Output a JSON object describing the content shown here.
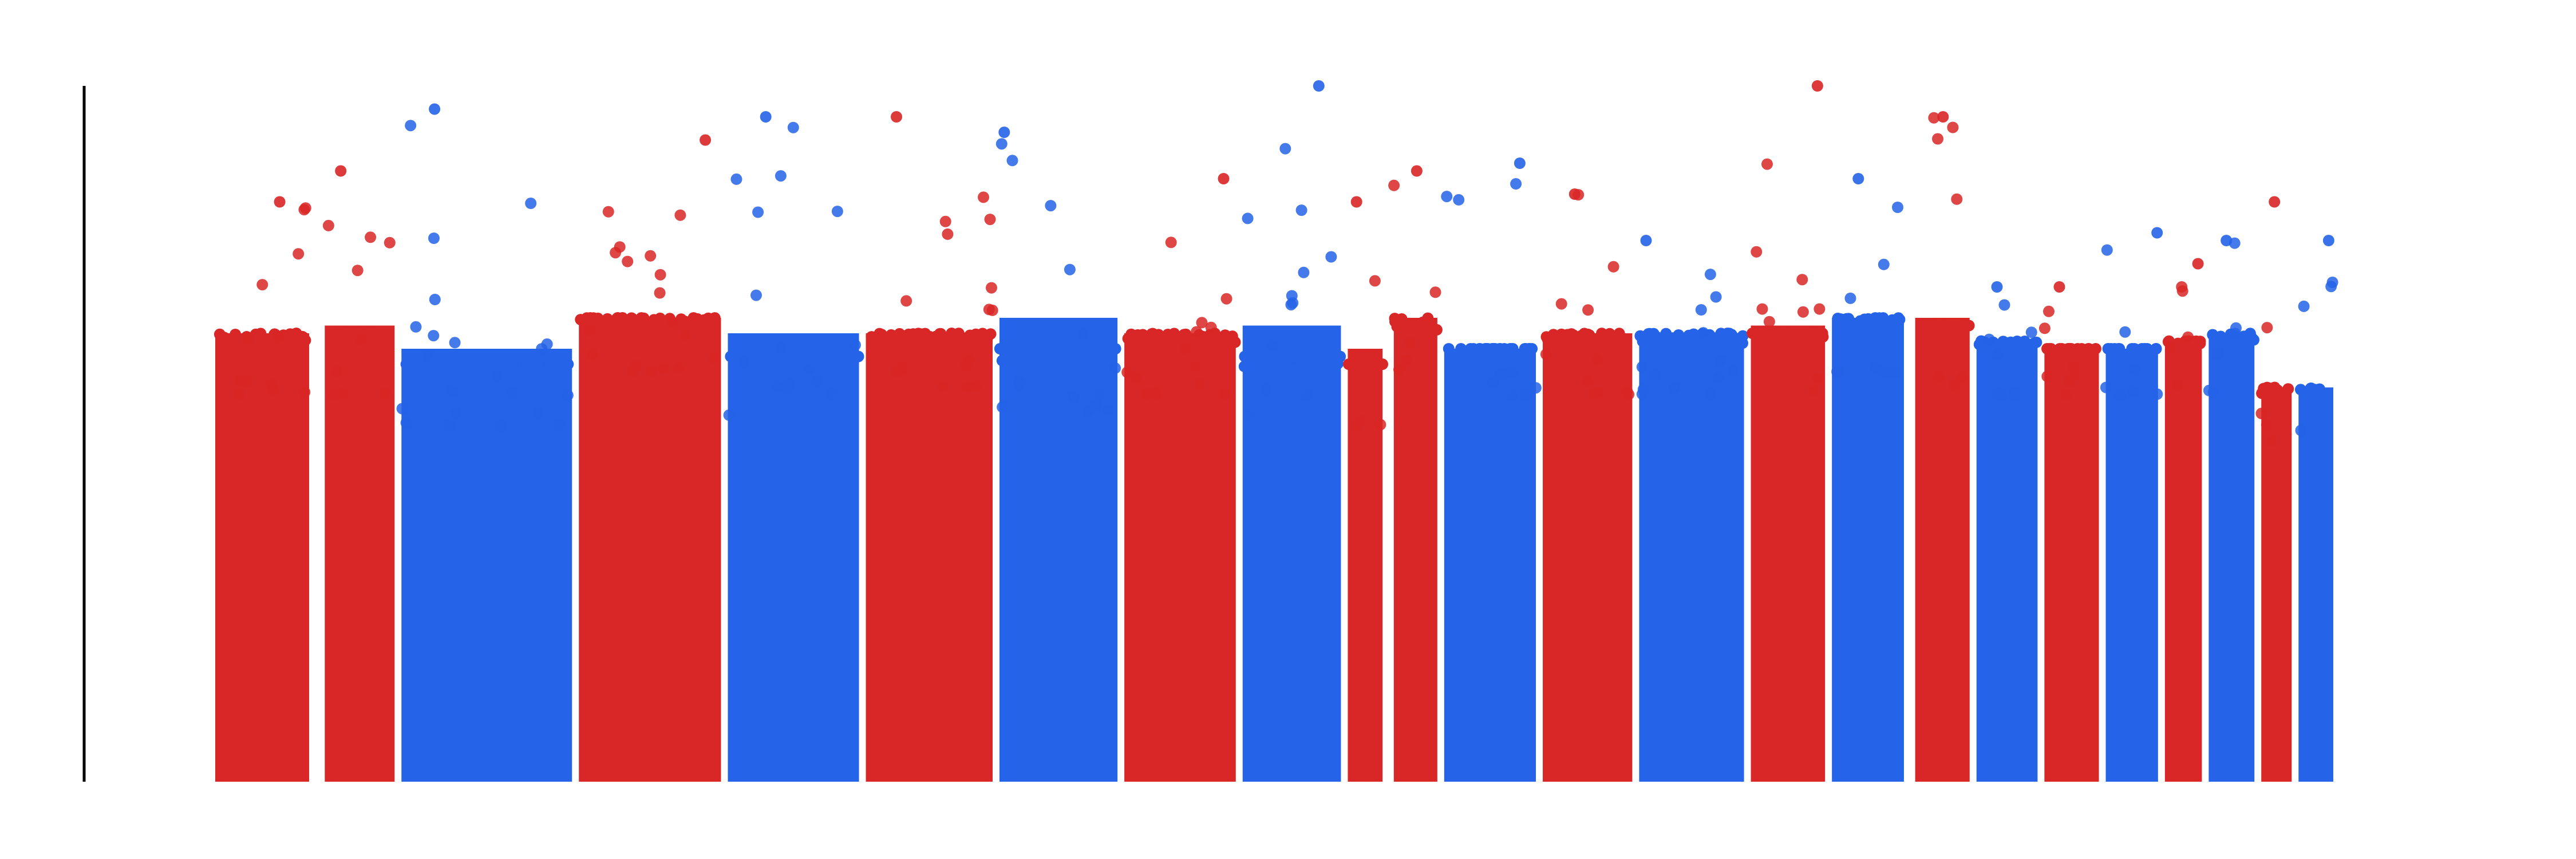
{
  "chart_data": {
    "type": "scatter",
    "title": "",
    "xlabel": "",
    "ylabel": "",
    "grid": false,
    "legend": "none",
    "ylim": [
      0,
      9
    ],
    "x_axis_visible": false,
    "y_axis_line_only": true,
    "colors": {
      "red": "#d92626",
      "blue": "#2563e8"
    },
    "chromosomes": [
      {
        "id": "1",
        "color": "red",
        "x_range": [
          0.0,
          4.6
        ],
        "peak": 7.5,
        "ceiling": 5.8,
        "upper": 5.0
      },
      {
        "id": "2",
        "color": "red",
        "x_range": [
          5.0,
          8.5
        ],
        "peak": 7.9,
        "ceiling": 5.9,
        "upper": 5.0
      },
      {
        "id": "3",
        "color": "blue",
        "x_range": [
          8.5,
          16.6
        ],
        "peak": 8.7,
        "ceiling": 5.6,
        "upper": 4.6
      },
      {
        "id": "4",
        "color": "red",
        "x_range": [
          16.6,
          23.4
        ],
        "peak": 8.3,
        "ceiling": 6.0,
        "upper": 5.3
      },
      {
        "id": "5",
        "color": "blue",
        "x_range": [
          23.4,
          29.7
        ],
        "peak": 8.6,
        "ceiling": 5.8,
        "upper": 4.7
      },
      {
        "id": "6",
        "color": "red",
        "x_range": [
          29.7,
          35.8
        ],
        "peak": 8.6,
        "ceiling": 5.8,
        "upper": 5.1
      },
      {
        "id": "7",
        "color": "blue",
        "x_range": [
          35.8,
          41.5
        ],
        "peak": 8.4,
        "ceiling": 6.0,
        "upper": 4.8
      },
      {
        "id": "8",
        "color": "red",
        "x_range": [
          41.5,
          46.9
        ],
        "peak": 7.8,
        "ceiling": 5.8,
        "upper": 5.0
      },
      {
        "id": "9",
        "color": "blue",
        "x_range": [
          46.9,
          51.7
        ],
        "peak": 9.0,
        "ceiling": 5.9,
        "upper": 4.7
      },
      {
        "id": "10",
        "color": "red",
        "x_range": [
          51.7,
          53.6
        ],
        "peak": 7.5,
        "ceiling": 5.6,
        "upper": 4.6
      },
      {
        "id": "11",
        "color": "red",
        "x_range": [
          53.8,
          56.1
        ],
        "peak": 7.9,
        "ceiling": 6.0,
        "upper": 5.2
      },
      {
        "id": "12",
        "color": "blue",
        "x_range": [
          56.1,
          60.6
        ],
        "peak": 8.0,
        "ceiling": 5.6,
        "upper": 5.0
      },
      {
        "id": "13",
        "color": "red",
        "x_range": [
          60.6,
          65.0
        ],
        "peak": 7.6,
        "ceiling": 5.8,
        "upper": 5.0
      },
      {
        "id": "14",
        "color": "blue",
        "x_range": [
          65.0,
          70.1
        ],
        "peak": 7.0,
        "ceiling": 5.8,
        "upper": 5.0
      },
      {
        "id": "15",
        "color": "red",
        "x_range": [
          70.1,
          73.8
        ],
        "peak": 9.0,
        "ceiling": 5.9,
        "upper": 5.0
      },
      {
        "id": "16",
        "color": "blue",
        "x_range": [
          73.8,
          77.4
        ],
        "peak": 7.8,
        "ceiling": 6.0,
        "upper": 5.3
      },
      {
        "id": "17",
        "color": "red",
        "x_range": [
          77.6,
          80.4
        ],
        "peak": 8.6,
        "ceiling": 6.0,
        "upper": 5.1
      },
      {
        "id": "18",
        "color": "blue",
        "x_range": [
          80.4,
          83.5
        ],
        "peak": 6.4,
        "ceiling": 5.7,
        "upper": 5.0
      },
      {
        "id": "19",
        "color": "red",
        "x_range": [
          83.5,
          86.3
        ],
        "peak": 6.4,
        "ceiling": 5.6,
        "upper": 5.0
      },
      {
        "id": "20",
        "color": "blue",
        "x_range": [
          86.3,
          89.0
        ],
        "peak": 7.1,
        "ceiling": 5.6,
        "upper": 5.0
      },
      {
        "id": "21",
        "color": "red",
        "x_range": [
          89.0,
          91.0
        ],
        "peak": 6.7,
        "ceiling": 5.7,
        "upper": 5.0
      },
      {
        "id": "22",
        "color": "blue",
        "x_range": [
          91.0,
          93.4
        ],
        "peak": 7.0,
        "ceiling": 5.8,
        "upper": 5.0
      },
      {
        "id": "23",
        "color": "red",
        "x_range": [
          93.4,
          95.1
        ],
        "peak": 7.5,
        "ceiling": 5.1,
        "upper": 4.4
      },
      {
        "id": "24",
        "color": "blue",
        "x_range": [
          95.1,
          97.0
        ],
        "peak": 7.0,
        "ceiling": 5.1,
        "upper": 4.3
      }
    ]
  }
}
